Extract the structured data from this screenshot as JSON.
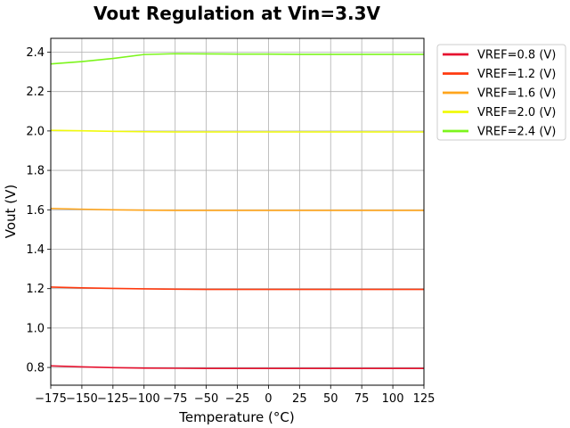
{
  "chart_data": {
    "type": "line",
    "title": "Vout Regulation at Vin=3.3V",
    "xlabel": "Temperature (°C)",
    "ylabel": "Vout (V)",
    "xlim": [
      -175,
      125
    ],
    "ylim": [
      0.71,
      2.47
    ],
    "xticks": [
      -175,
      -150,
      -125,
      -100,
      -75,
      -50,
      -25,
      0,
      25,
      50,
      75,
      100,
      125
    ],
    "yticks": [
      0.8,
      1.0,
      1.2,
      1.4,
      1.6,
      1.8,
      2.0,
      2.2,
      2.4
    ],
    "grid": true,
    "legend_position": "outside-right-top",
    "x": [
      -175,
      -150,
      -125,
      -100,
      -75,
      -50,
      -25,
      0,
      25,
      50,
      75,
      100,
      125
    ],
    "series": [
      {
        "name": "VREF=0.8 (V)",
        "color": "#e6122f",
        "values": [
          0.808,
          0.803,
          0.799,
          0.797,
          0.796,
          0.795,
          0.795,
          0.795,
          0.795,
          0.795,
          0.795,
          0.795,
          0.795
        ]
      },
      {
        "name": "VREF=1.2 (V)",
        "color": "#ff3a0f",
        "values": [
          1.208,
          1.204,
          1.201,
          1.199,
          1.197,
          1.196,
          1.196,
          1.196,
          1.196,
          1.196,
          1.196,
          1.196,
          1.196
        ]
      },
      {
        "name": "VREF=1.6 (V)",
        "color": "#ffa51c",
        "values": [
          1.607,
          1.603,
          1.6,
          1.598,
          1.597,
          1.597,
          1.597,
          1.597,
          1.597,
          1.597,
          1.597,
          1.597,
          1.597
        ]
      },
      {
        "name": "VREF=2.0 (V)",
        "color": "#f0fa0a",
        "values": [
          2.003,
          2.001,
          1.998,
          1.996,
          1.995,
          1.995,
          1.995,
          1.995,
          1.995,
          1.995,
          1.995,
          1.995,
          1.995
        ]
      },
      {
        "name": "VREF=2.4 (V)",
        "color": "#7cf51c",
        "values": [
          2.34,
          2.352,
          2.368,
          2.388,
          2.392,
          2.391,
          2.39,
          2.39,
          2.389,
          2.389,
          2.389,
          2.389,
          2.389
        ]
      }
    ]
  }
}
